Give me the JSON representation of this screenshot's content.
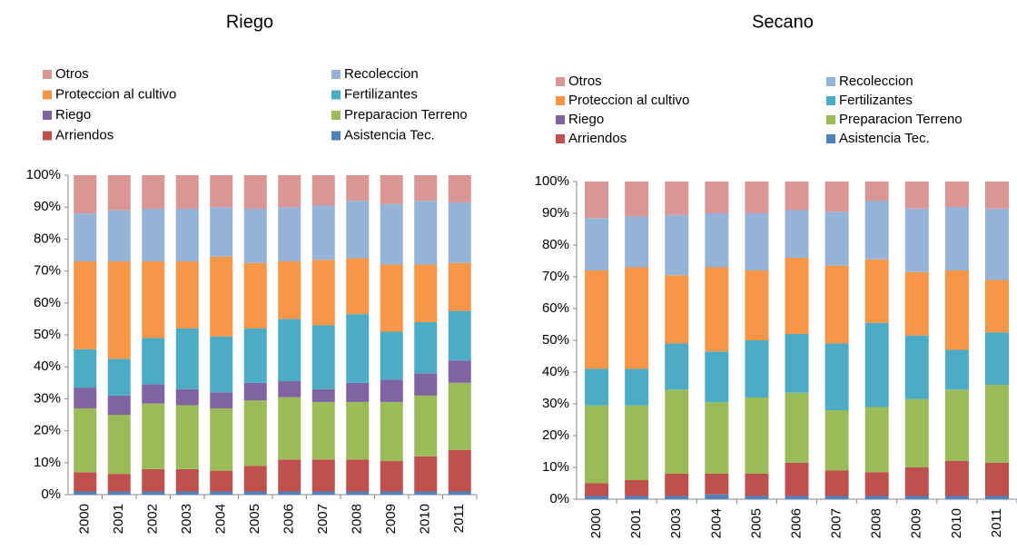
{
  "chart_data": [
    {
      "type": "bar",
      "stacked": true,
      "title": "Riego",
      "legend": "top",
      "categories": [
        "2000",
        "2001",
        "2002",
        "2003",
        "2004",
        "2005",
        "2006",
        "2007",
        "2008",
        "2009",
        "2010",
        "2011"
      ],
      "ylim": [
        0,
        100
      ],
      "yticks": [
        {
          "value": 0,
          "label": "0%"
        },
        {
          "value": 10,
          "label": "10%"
        },
        {
          "value": 20,
          "label": "20%"
        },
        {
          "value": 30,
          "label": "30%"
        },
        {
          "value": 40,
          "label": "40%"
        },
        {
          "value": 50,
          "label": "50%"
        },
        {
          "value": 60,
          "label": "60%"
        },
        {
          "value": 70,
          "label": "70%"
        },
        {
          "value": 80,
          "label": "80%"
        },
        {
          "value": 90,
          "label": "90%"
        },
        {
          "value": 100,
          "label": "100%"
        }
      ],
      "series": [
        {
          "name": "Asistencia Tec.",
          "color": "#4f81bd",
          "values": [
            1,
            1,
            1,
            1,
            1,
            1,
            1,
            1,
            1,
            1,
            1,
            1
          ]
        },
        {
          "name": "Arriendos",
          "color": "#c0504d",
          "values": [
            6,
            5.5,
            7,
            7,
            6.5,
            8,
            10,
            10,
            10,
            9.5,
            11,
            13
          ]
        },
        {
          "name": "Preparacion Terreno",
          "color": "#9bbb59",
          "values": [
            20,
            18.5,
            20.5,
            20,
            19.5,
            20.5,
            19.5,
            18,
            18,
            18.5,
            19,
            21
          ]
        },
        {
          "name": "Riego",
          "color": "#8064a2",
          "values": [
            6.5,
            6,
            6,
            5,
            5,
            5.5,
            5,
            4,
            6,
            7,
            7,
            7
          ]
        },
        {
          "name": "Fertilizantes",
          "color": "#4bacc6",
          "values": [
            12,
            11.5,
            14.5,
            19,
            17.5,
            17,
            19.5,
            20,
            21.5,
            15,
            16,
            15.5
          ]
        },
        {
          "name": "Proteccion al cultivo",
          "color": "#f79646",
          "values": [
            27.5,
            30.5,
            24,
            21,
            25,
            20.5,
            18,
            20.5,
            17.5,
            21,
            18,
            15
          ]
        },
        {
          "name": "Recoleccion",
          "color": "#95b3d7",
          "values": [
            15,
            16,
            16.5,
            16.5,
            15.5,
            17,
            17,
            17,
            18,
            19,
            20,
            19
          ]
        },
        {
          "name": "Otros",
          "color": "#d99694",
          "values": [
            12,
            11,
            10.5,
            10.5,
            10,
            10.5,
            10,
            9.5,
            8,
            9,
            8,
            8.5
          ]
        }
      ]
    },
    {
      "type": "bar",
      "stacked": true,
      "title": "Secano",
      "legend": "top",
      "categories": [
        "2000",
        "2001",
        "2003",
        "2004",
        "2005",
        "2006",
        "2007",
        "2008",
        "2009",
        "2010",
        "2011"
      ],
      "ylim": [
        0,
        100
      ],
      "yticks": [
        {
          "value": 0,
          "label": "0%"
        },
        {
          "value": 10,
          "label": "10%"
        },
        {
          "value": 20,
          "label": "20%"
        },
        {
          "value": 30,
          "label": "30%"
        },
        {
          "value": 40,
          "label": "40%"
        },
        {
          "value": 50,
          "label": "50%"
        },
        {
          "value": 60,
          "label": "60%"
        },
        {
          "value": 70,
          "label": "70%"
        },
        {
          "value": 80,
          "label": "80%"
        },
        {
          "value": 90,
          "label": "90%"
        },
        {
          "value": 100,
          "label": "100%"
        }
      ],
      "series": [
        {
          "name": "Asistencia Tec.",
          "color": "#4f81bd",
          "values": [
            1,
            1,
            1,
            1.5,
            1,
            1,
            1,
            1,
            1,
            1,
            1
          ]
        },
        {
          "name": "Arriendos",
          "color": "#c0504d",
          "values": [
            4,
            5,
            7,
            6.5,
            7,
            10.5,
            8,
            7.5,
            9,
            11,
            10.5
          ]
        },
        {
          "name": "Preparacion Terreno",
          "color": "#9bbb59",
          "values": [
            24.5,
            23.5,
            26.5,
            22.5,
            24,
            22,
            19,
            20.5,
            21.5,
            22.5,
            24.5
          ]
        },
        {
          "name": "Riego",
          "color": "#8064a2",
          "values": [
            0,
            0,
            0,
            0,
            0,
            0,
            0,
            0,
            0,
            0,
            0
          ]
        },
        {
          "name": "Fertilizantes",
          "color": "#4bacc6",
          "values": [
            11.5,
            11.5,
            14.5,
            16,
            18,
            18.5,
            21,
            26.5,
            20,
            12.5,
            16.5
          ]
        },
        {
          "name": "Proteccion al cultivo",
          "color": "#f79646",
          "values": [
            31,
            32,
            21.5,
            26.5,
            22,
            24,
            24.5,
            20,
            20,
            25,
            16.5
          ]
        },
        {
          "name": "Recoleccion",
          "color": "#95b3d7",
          "values": [
            16.5,
            16,
            19,
            17,
            18,
            15,
            17,
            18.5,
            20,
            20,
            22.5
          ]
        },
        {
          "name": "Otros",
          "color": "#d99694",
          "values": [
            11.5,
            11,
            10.5,
            10,
            10,
            9,
            9.5,
            6,
            8.5,
            8,
            8.5
          ]
        }
      ]
    }
  ]
}
